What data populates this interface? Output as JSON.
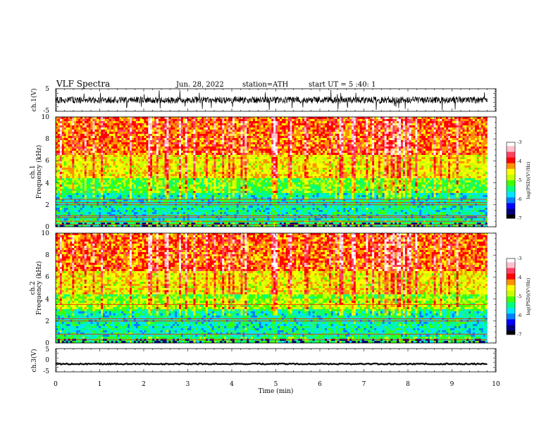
{
  "header": {
    "title": "VLF  Spectra",
    "date": "Jun. 28, 2022",
    "station": "station=ATH",
    "start": "start  UT  =    5  :40: 1"
  },
  "colors": {
    "scale": [
      "#000000",
      "#000080",
      "#0000ff",
      "#0080ff",
      "#00e5ff",
      "#00ff80",
      "#40ff00",
      "#c8ff00",
      "#ffff00",
      "#ff9000",
      "#ff0000",
      "#ff4060",
      "#ffc0cc",
      "#ffffff"
    ],
    "trace": "#000000"
  },
  "chart_data": [
    {
      "type": "line",
      "panel": "ch1-waveform",
      "ylabel": "ch.1(V)",
      "ylim": [
        -5,
        5
      ],
      "yticks": [
        "5",
        "-5"
      ],
      "xlim": [
        0,
        10
      ],
      "baseline": 0,
      "amplitude": 1.5
    },
    {
      "type": "heatmap",
      "panel": "ch1-spectrogram",
      "ylabel_top": "ch.1",
      "ylabel": "Frequency  (kHz)",
      "ylim": [
        0,
        10
      ],
      "yticks": [
        "0",
        "2",
        "4",
        "6",
        "8",
        "10"
      ],
      "xlim": [
        0,
        10
      ],
      "data_end_min": 9.8,
      "colorbar": {
        "label": "log(PSD)(V²/Hz)",
        "ticks": [
          "-3",
          "-4",
          "-5",
          "-6",
          "-7"
        ],
        "range": [
          -7,
          -3
        ]
      },
      "lines_khz": [
        0.2,
        0.5,
        0.85,
        1.0,
        2.0,
        2.2,
        2.5
      ]
    },
    {
      "type": "heatmap",
      "panel": "ch2-spectrogram",
      "ylabel_top": "ch.2",
      "ylabel": "Frequency  (kHz)",
      "ylim": [
        0,
        10
      ],
      "yticks": [
        "0",
        "2",
        "4",
        "6",
        "8",
        "10"
      ],
      "xlim": [
        0,
        10
      ],
      "data_end_min": 9.8,
      "colorbar": {
        "label": "log(PSD)(V²/Hz)",
        "ticks": [
          "-3",
          "-4",
          "-5",
          "-6",
          "-7"
        ],
        "range": [
          -7,
          -3
        ]
      },
      "lines_khz": [
        0.3,
        0.8,
        2.0,
        2.2,
        3.5
      ]
    },
    {
      "type": "line",
      "panel": "ch3-waveform",
      "ylabel": "ch.3(V)",
      "ylim": [
        -5,
        5
      ],
      "yticks": [
        "5",
        "0",
        "-5"
      ],
      "xlim": [
        0,
        10
      ],
      "baseline": -1.6,
      "amplitude": 0.25
    }
  ],
  "xaxis": {
    "label": "Time  (min)",
    "ticks": [
      "0",
      "1",
      "2",
      "3",
      "4",
      "5",
      "6",
      "7",
      "8",
      "9",
      "10"
    ]
  }
}
